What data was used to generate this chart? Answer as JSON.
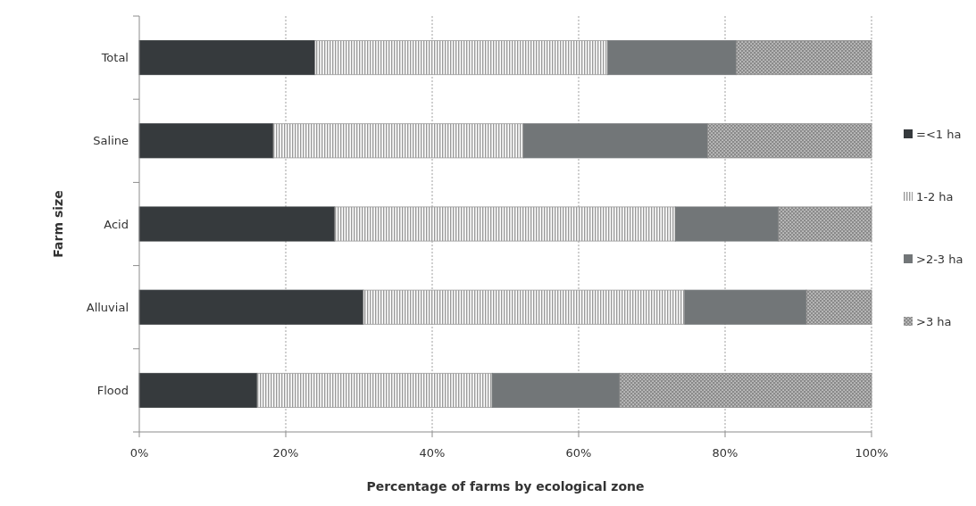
{
  "chart_data": {
    "type": "bar",
    "orientation": "horizontal",
    "stacked": true,
    "xlabel": "Percentage of farms by ecological zone",
    "ylabel": "Farm size",
    "categories": [
      "Total",
      "Saline",
      "Acid",
      "Alluvial",
      "Flood"
    ],
    "series": [
      {
        "name": "=<1 ha",
        "color": "#363a3d",
        "values": [
          24,
          18.3,
          26.7,
          30.6,
          16.1
        ]
      },
      {
        "name": "1-2 ha",
        "color": "#9a9a9a",
        "values": [
          40,
          34.2,
          46.5,
          43.9,
          32.1
        ]
      },
      {
        "name": ">2-3 ha",
        "color": "#727678",
        "values": [
          17.5,
          25.1,
          14.1,
          16.6,
          17.4
        ]
      },
      {
        "name": ">3 ha",
        "color": "#8a8a8a",
        "values": [
          18.5,
          22.4,
          12.7,
          8.9,
          34.4
        ]
      }
    ],
    "xlim": [
      0,
      100
    ],
    "xticks": [
      {
        "value": 0,
        "label": "0%"
      },
      {
        "value": 20,
        "label": "20%"
      },
      {
        "value": 40,
        "label": "40%"
      },
      {
        "value": 60,
        "label": "60%"
      },
      {
        "value": 80,
        "label": "80%"
      },
      {
        "value": 100,
        "label": "100%"
      }
    ],
    "grid": "x",
    "legend": "right"
  }
}
